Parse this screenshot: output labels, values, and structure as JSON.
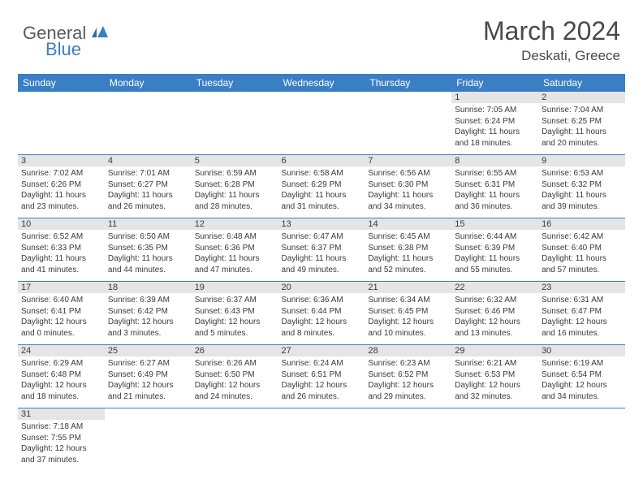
{
  "logo": {
    "general": "General",
    "blue": "Blue"
  },
  "title": "March 2024",
  "location": "Deskati, Greece",
  "colors": {
    "header_bg": "#3a7fc4",
    "header_text": "#ffffff",
    "daynum_bg": "#e5e5e5",
    "border": "#3a7fc4",
    "text": "#3a3a3a",
    "title_text": "#4a4a4a"
  },
  "daynames": [
    "Sunday",
    "Monday",
    "Tuesday",
    "Wednesday",
    "Thursday",
    "Friday",
    "Saturday"
  ],
  "weeks": [
    [
      null,
      null,
      null,
      null,
      null,
      {
        "n": "1",
        "sr": "Sunrise: 7:05 AM",
        "ss": "Sunset: 6:24 PM",
        "d1": "Daylight: 11 hours",
        "d2": "and 18 minutes."
      },
      {
        "n": "2",
        "sr": "Sunrise: 7:04 AM",
        "ss": "Sunset: 6:25 PM",
        "d1": "Daylight: 11 hours",
        "d2": "and 20 minutes."
      }
    ],
    [
      {
        "n": "3",
        "sr": "Sunrise: 7:02 AM",
        "ss": "Sunset: 6:26 PM",
        "d1": "Daylight: 11 hours",
        "d2": "and 23 minutes."
      },
      {
        "n": "4",
        "sr": "Sunrise: 7:01 AM",
        "ss": "Sunset: 6:27 PM",
        "d1": "Daylight: 11 hours",
        "d2": "and 26 minutes."
      },
      {
        "n": "5",
        "sr": "Sunrise: 6:59 AM",
        "ss": "Sunset: 6:28 PM",
        "d1": "Daylight: 11 hours",
        "d2": "and 28 minutes."
      },
      {
        "n": "6",
        "sr": "Sunrise: 6:58 AM",
        "ss": "Sunset: 6:29 PM",
        "d1": "Daylight: 11 hours",
        "d2": "and 31 minutes."
      },
      {
        "n": "7",
        "sr": "Sunrise: 6:56 AM",
        "ss": "Sunset: 6:30 PM",
        "d1": "Daylight: 11 hours",
        "d2": "and 34 minutes."
      },
      {
        "n": "8",
        "sr": "Sunrise: 6:55 AM",
        "ss": "Sunset: 6:31 PM",
        "d1": "Daylight: 11 hours",
        "d2": "and 36 minutes."
      },
      {
        "n": "9",
        "sr": "Sunrise: 6:53 AM",
        "ss": "Sunset: 6:32 PM",
        "d1": "Daylight: 11 hours",
        "d2": "and 39 minutes."
      }
    ],
    [
      {
        "n": "10",
        "sr": "Sunrise: 6:52 AM",
        "ss": "Sunset: 6:33 PM",
        "d1": "Daylight: 11 hours",
        "d2": "and 41 minutes."
      },
      {
        "n": "11",
        "sr": "Sunrise: 6:50 AM",
        "ss": "Sunset: 6:35 PM",
        "d1": "Daylight: 11 hours",
        "d2": "and 44 minutes."
      },
      {
        "n": "12",
        "sr": "Sunrise: 6:48 AM",
        "ss": "Sunset: 6:36 PM",
        "d1": "Daylight: 11 hours",
        "d2": "and 47 minutes."
      },
      {
        "n": "13",
        "sr": "Sunrise: 6:47 AM",
        "ss": "Sunset: 6:37 PM",
        "d1": "Daylight: 11 hours",
        "d2": "and 49 minutes."
      },
      {
        "n": "14",
        "sr": "Sunrise: 6:45 AM",
        "ss": "Sunset: 6:38 PM",
        "d1": "Daylight: 11 hours",
        "d2": "and 52 minutes."
      },
      {
        "n": "15",
        "sr": "Sunrise: 6:44 AM",
        "ss": "Sunset: 6:39 PM",
        "d1": "Daylight: 11 hours",
        "d2": "and 55 minutes."
      },
      {
        "n": "16",
        "sr": "Sunrise: 6:42 AM",
        "ss": "Sunset: 6:40 PM",
        "d1": "Daylight: 11 hours",
        "d2": "and 57 minutes."
      }
    ],
    [
      {
        "n": "17",
        "sr": "Sunrise: 6:40 AM",
        "ss": "Sunset: 6:41 PM",
        "d1": "Daylight: 12 hours",
        "d2": "and 0 minutes."
      },
      {
        "n": "18",
        "sr": "Sunrise: 6:39 AM",
        "ss": "Sunset: 6:42 PM",
        "d1": "Daylight: 12 hours",
        "d2": "and 3 minutes."
      },
      {
        "n": "19",
        "sr": "Sunrise: 6:37 AM",
        "ss": "Sunset: 6:43 PM",
        "d1": "Daylight: 12 hours",
        "d2": "and 5 minutes."
      },
      {
        "n": "20",
        "sr": "Sunrise: 6:36 AM",
        "ss": "Sunset: 6:44 PM",
        "d1": "Daylight: 12 hours",
        "d2": "and 8 minutes."
      },
      {
        "n": "21",
        "sr": "Sunrise: 6:34 AM",
        "ss": "Sunset: 6:45 PM",
        "d1": "Daylight: 12 hours",
        "d2": "and 10 minutes."
      },
      {
        "n": "22",
        "sr": "Sunrise: 6:32 AM",
        "ss": "Sunset: 6:46 PM",
        "d1": "Daylight: 12 hours",
        "d2": "and 13 minutes."
      },
      {
        "n": "23",
        "sr": "Sunrise: 6:31 AM",
        "ss": "Sunset: 6:47 PM",
        "d1": "Daylight: 12 hours",
        "d2": "and 16 minutes."
      }
    ],
    [
      {
        "n": "24",
        "sr": "Sunrise: 6:29 AM",
        "ss": "Sunset: 6:48 PM",
        "d1": "Daylight: 12 hours",
        "d2": "and 18 minutes."
      },
      {
        "n": "25",
        "sr": "Sunrise: 6:27 AM",
        "ss": "Sunset: 6:49 PM",
        "d1": "Daylight: 12 hours",
        "d2": "and 21 minutes."
      },
      {
        "n": "26",
        "sr": "Sunrise: 6:26 AM",
        "ss": "Sunset: 6:50 PM",
        "d1": "Daylight: 12 hours",
        "d2": "and 24 minutes."
      },
      {
        "n": "27",
        "sr": "Sunrise: 6:24 AM",
        "ss": "Sunset: 6:51 PM",
        "d1": "Daylight: 12 hours",
        "d2": "and 26 minutes."
      },
      {
        "n": "28",
        "sr": "Sunrise: 6:23 AM",
        "ss": "Sunset: 6:52 PM",
        "d1": "Daylight: 12 hours",
        "d2": "and 29 minutes."
      },
      {
        "n": "29",
        "sr": "Sunrise: 6:21 AM",
        "ss": "Sunset: 6:53 PM",
        "d1": "Daylight: 12 hours",
        "d2": "and 32 minutes."
      },
      {
        "n": "30",
        "sr": "Sunrise: 6:19 AM",
        "ss": "Sunset: 6:54 PM",
        "d1": "Daylight: 12 hours",
        "d2": "and 34 minutes."
      }
    ],
    [
      {
        "n": "31",
        "sr": "Sunrise: 7:18 AM",
        "ss": "Sunset: 7:55 PM",
        "d1": "Daylight: 12 hours",
        "d2": "and 37 minutes."
      },
      null,
      null,
      null,
      null,
      null,
      null
    ]
  ]
}
